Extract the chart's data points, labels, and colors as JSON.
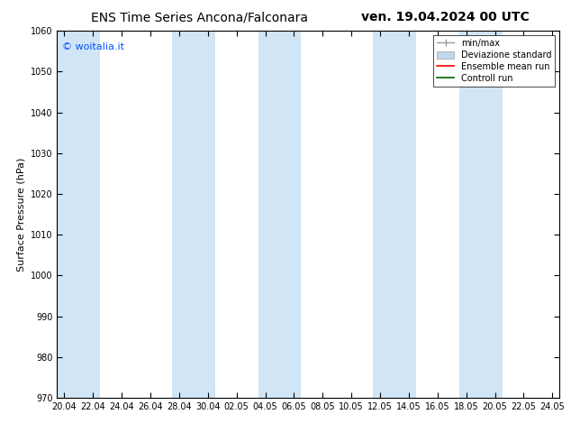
{
  "title_left": "ENS Time Series Ancona/Falconara",
  "title_right": "ven. 19.04.2024 00 UTC",
  "ylabel": "Surface Pressure (hPa)",
  "ylim": [
    970,
    1060
  ],
  "yticks": [
    970,
    980,
    990,
    1000,
    1010,
    1020,
    1030,
    1040,
    1050,
    1060
  ],
  "xtick_labels": [
    "20.04",
    "22.04",
    "24.04",
    "26.04",
    "28.04",
    "30.04",
    "02.05",
    "04.05",
    "06.05",
    "08.05",
    "10.05",
    "12.05",
    "14.05",
    "16.05",
    "18.05",
    "20.05",
    "22.05",
    "24.05"
  ],
  "watermark": "© woitalia.it",
  "watermark_color": "#0055ff",
  "bg_color": "#ffffff",
  "plot_bg_color": "#ffffff",
  "shaded_band_color": "#d0e5f5",
  "shaded_band_alpha": 1.0,
  "legend_entries": [
    "min/max",
    "Deviazione standard",
    "Ensemble mean run",
    "Controll run"
  ],
  "minmax_color": "#999999",
  "dev_std_color": "#c0d8ee",
  "ens_color": "#ff0000",
  "ctrl_color": "#006400",
  "font_size_title": 10,
  "font_size_axis": 8,
  "font_size_ticks": 7,
  "font_size_legend": 7,
  "font_size_watermark": 8
}
